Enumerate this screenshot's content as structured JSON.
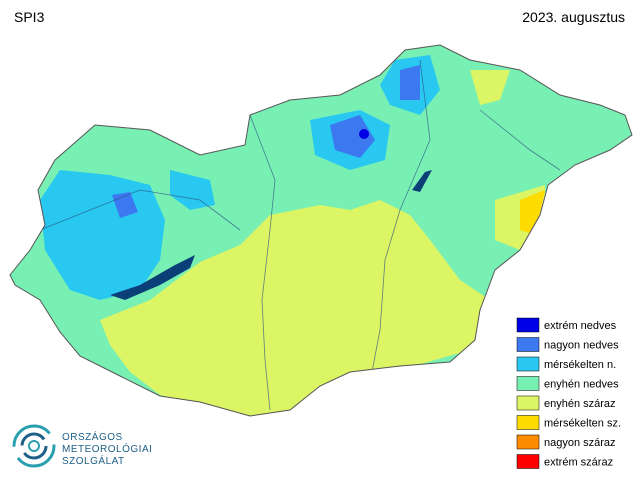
{
  "title": "SPI3",
  "date": "2023. augusztus",
  "legend": [
    {
      "name": "extrém nedves",
      "color": "#0000e6"
    },
    {
      "name": "nagyon nedves",
      "color": "#3c78f0"
    },
    {
      "name": "mérsékelten n.",
      "color": "#28c8f0"
    },
    {
      "name": "enyhén nedves",
      "color": "#78f0b4"
    },
    {
      "name": "enyhén száraz",
      "color": "#dcf564"
    },
    {
      "name": "mérsékelten sz.",
      "color": "#ffdc00"
    },
    {
      "name": "nagyon száraz",
      "color": "#ff8c00"
    },
    {
      "name": "extrém száraz",
      "color": "#ff0000"
    }
  ],
  "logo": {
    "line1": "ORSZÁGOS",
    "line2": "METEOROLÓGIAI",
    "line3": "SZOLGÁLAT"
  }
}
